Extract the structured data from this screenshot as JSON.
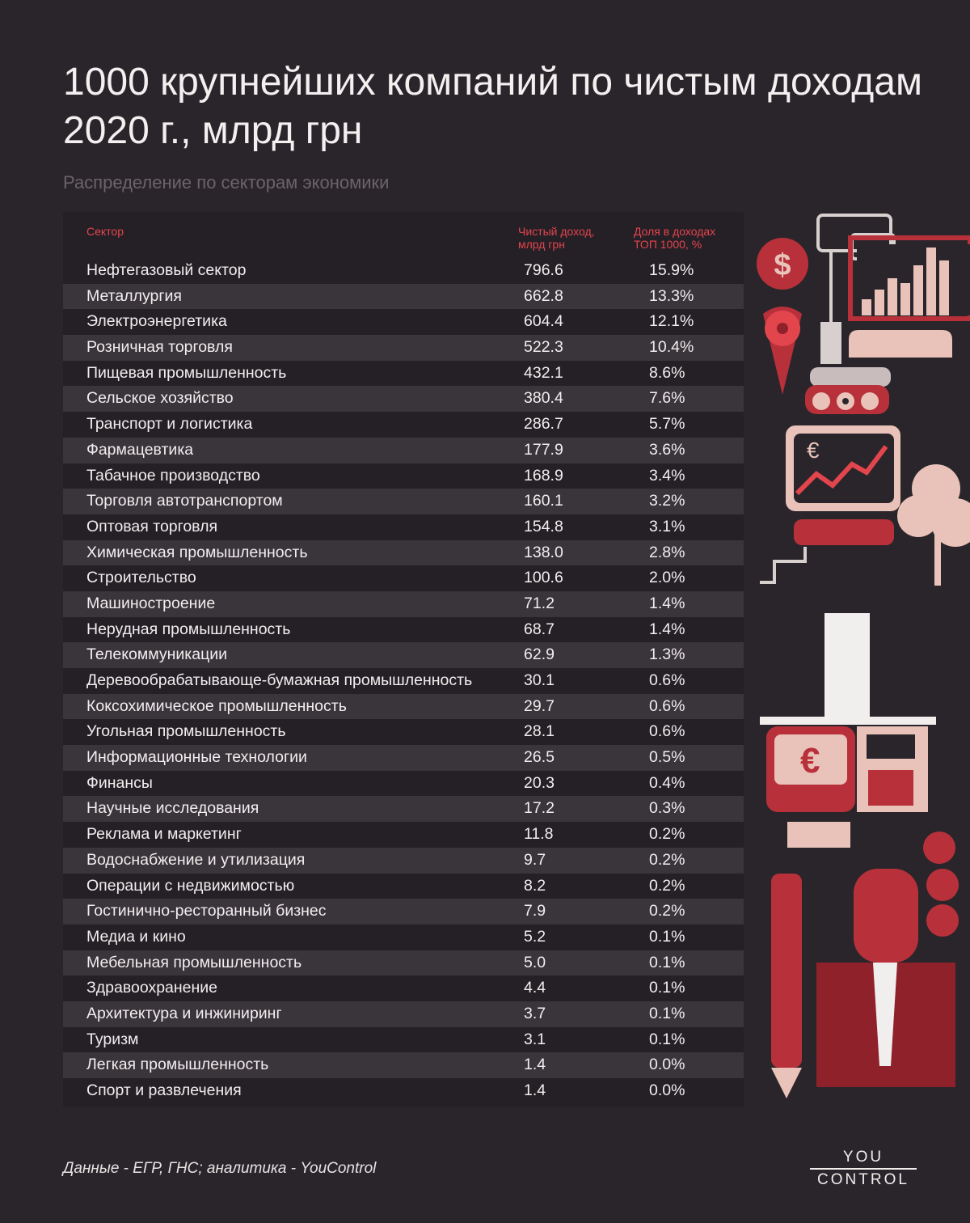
{
  "header": {
    "title": "1000 крупнейших компаний по чистым доходам 2020 г., млрд грн",
    "subtitle": "Распределение по секторам экономики"
  },
  "table": {
    "columns": {
      "sector": "Сектор",
      "income": "Чистый доход, млрд грн",
      "share": "Доля в доходах ТОП 1000, %"
    }
  },
  "chart_data": {
    "type": "table",
    "title": "1000 крупнейших компаний по чистым доходам 2020 г., млрд грн",
    "subtitle": "Распределение по секторам экономики",
    "columns": [
      "Сектор",
      "Чистый доход, млрд грн",
      "Доля в доходах ТОП 1000, %"
    ],
    "rows": [
      [
        "Нефтегазовый сектор",
        "796.6",
        "15.9%"
      ],
      [
        "Металлургия",
        "662.8",
        "13.3%"
      ],
      [
        "Электроэнергетика",
        "604.4",
        "12.1%"
      ],
      [
        "Розничная торговля",
        "522.3",
        "10.4%"
      ],
      [
        "Пищевая промышленность",
        "432.1",
        "8.6%"
      ],
      [
        "Сельское хозяйство",
        "380.4",
        "7.6%"
      ],
      [
        "Транспорт и логистика",
        "286.7",
        "5.7%"
      ],
      [
        "Фармацевтика",
        "177.9",
        "3.6%"
      ],
      [
        "Табачное производство",
        "168.9",
        "3.4%"
      ],
      [
        "Торговля автотранспортом",
        "160.1",
        "3.2%"
      ],
      [
        "Оптовая торговля",
        "154.8",
        "3.1%"
      ],
      [
        "Химическая промышленность",
        "138.0",
        "2.8%"
      ],
      [
        "Строительство",
        "100.6",
        "2.0%"
      ],
      [
        "Машиностроение",
        "71.2",
        "1.4%"
      ],
      [
        "Нерудная промышленность",
        "68.7",
        "1.4%"
      ],
      [
        "Телекоммуникации",
        "62.9",
        "1.3%"
      ],
      [
        "Деревообрабатывающе-бумажная промышленность",
        "30.1",
        "0.6%"
      ],
      [
        "Коксохимическое промышленность",
        "29.7",
        "0.6%"
      ],
      [
        "Угольная промышленность",
        "28.1",
        "0.6%"
      ],
      [
        "Информационные технологии",
        "26.5",
        "0.5%"
      ],
      [
        "Финансы",
        "20.3",
        "0.4%"
      ],
      [
        "Научные исследования",
        "17.2",
        "0.3%"
      ],
      [
        "Реклама и маркетинг",
        "11.8",
        "0.2%"
      ],
      [
        "Водоснабжение и утилизация",
        "9.7",
        "0.2%"
      ],
      [
        "Операции с недвижимостью",
        "8.2",
        "0.2%"
      ],
      [
        "Гостинично-ресторанный бизнес",
        "7.9",
        "0.2%"
      ],
      [
        "Медиа и кино",
        "5.2",
        "0.1%"
      ],
      [
        "Мебельная промышленность",
        "5.0",
        "0.1%"
      ],
      [
        "Здравоохранение",
        "4.4",
        "0.1%"
      ],
      [
        "Архитектура и инжиниринг",
        "3.7",
        "0.1%"
      ],
      [
        "Туризм",
        "3.1",
        "0.1%"
      ],
      [
        "Легкая промышленность",
        "1.4",
        "0.0%"
      ],
      [
        "Спорт и развлечения",
        "1.4",
        "0.0%"
      ]
    ]
  },
  "footer": {
    "source": "Данные - ЕГР, ГНС; аналитика - YouControl",
    "logo_top": "YOU",
    "logo_bottom": "CONTROL"
  },
  "illustration": {
    "icons": [
      "dollar-pin-icon",
      "robot-computer-icon",
      "euro-chart-monitor-icon",
      "tree-icon",
      "document-stack-icon",
      "atm-machine-icon",
      "fountain-pen-icon",
      "coin-stack-icon",
      "businessman-icon"
    ],
    "colors": {
      "red": "#b8313a",
      "pink": "#e9c3b9",
      "dark": "#2a252b",
      "accent": "#e3454d"
    }
  }
}
